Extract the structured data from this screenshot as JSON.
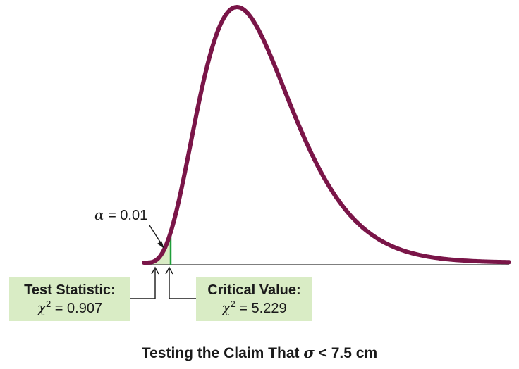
{
  "alpha": {
    "symbol": "α",
    "text": " = 0.01"
  },
  "test_statistic": {
    "heading": "Test Statistic:",
    "symbol": "χ",
    "exp": "2",
    "value_text": " = 0.907",
    "value": 0.907
  },
  "critical_value": {
    "heading": "Critical Value:",
    "symbol": "χ",
    "exp": "2",
    "value_text": " = 5.229",
    "value": 5.229
  },
  "caption": {
    "prefix": "Testing the Claim That ",
    "symbol": "σ",
    "relation": " < 7.5 cm"
  },
  "colors": {
    "curve": "#7a1548",
    "critical_line": "#1f9e3a",
    "shaded": "#d9ecc5",
    "axis": "#555555"
  }
}
